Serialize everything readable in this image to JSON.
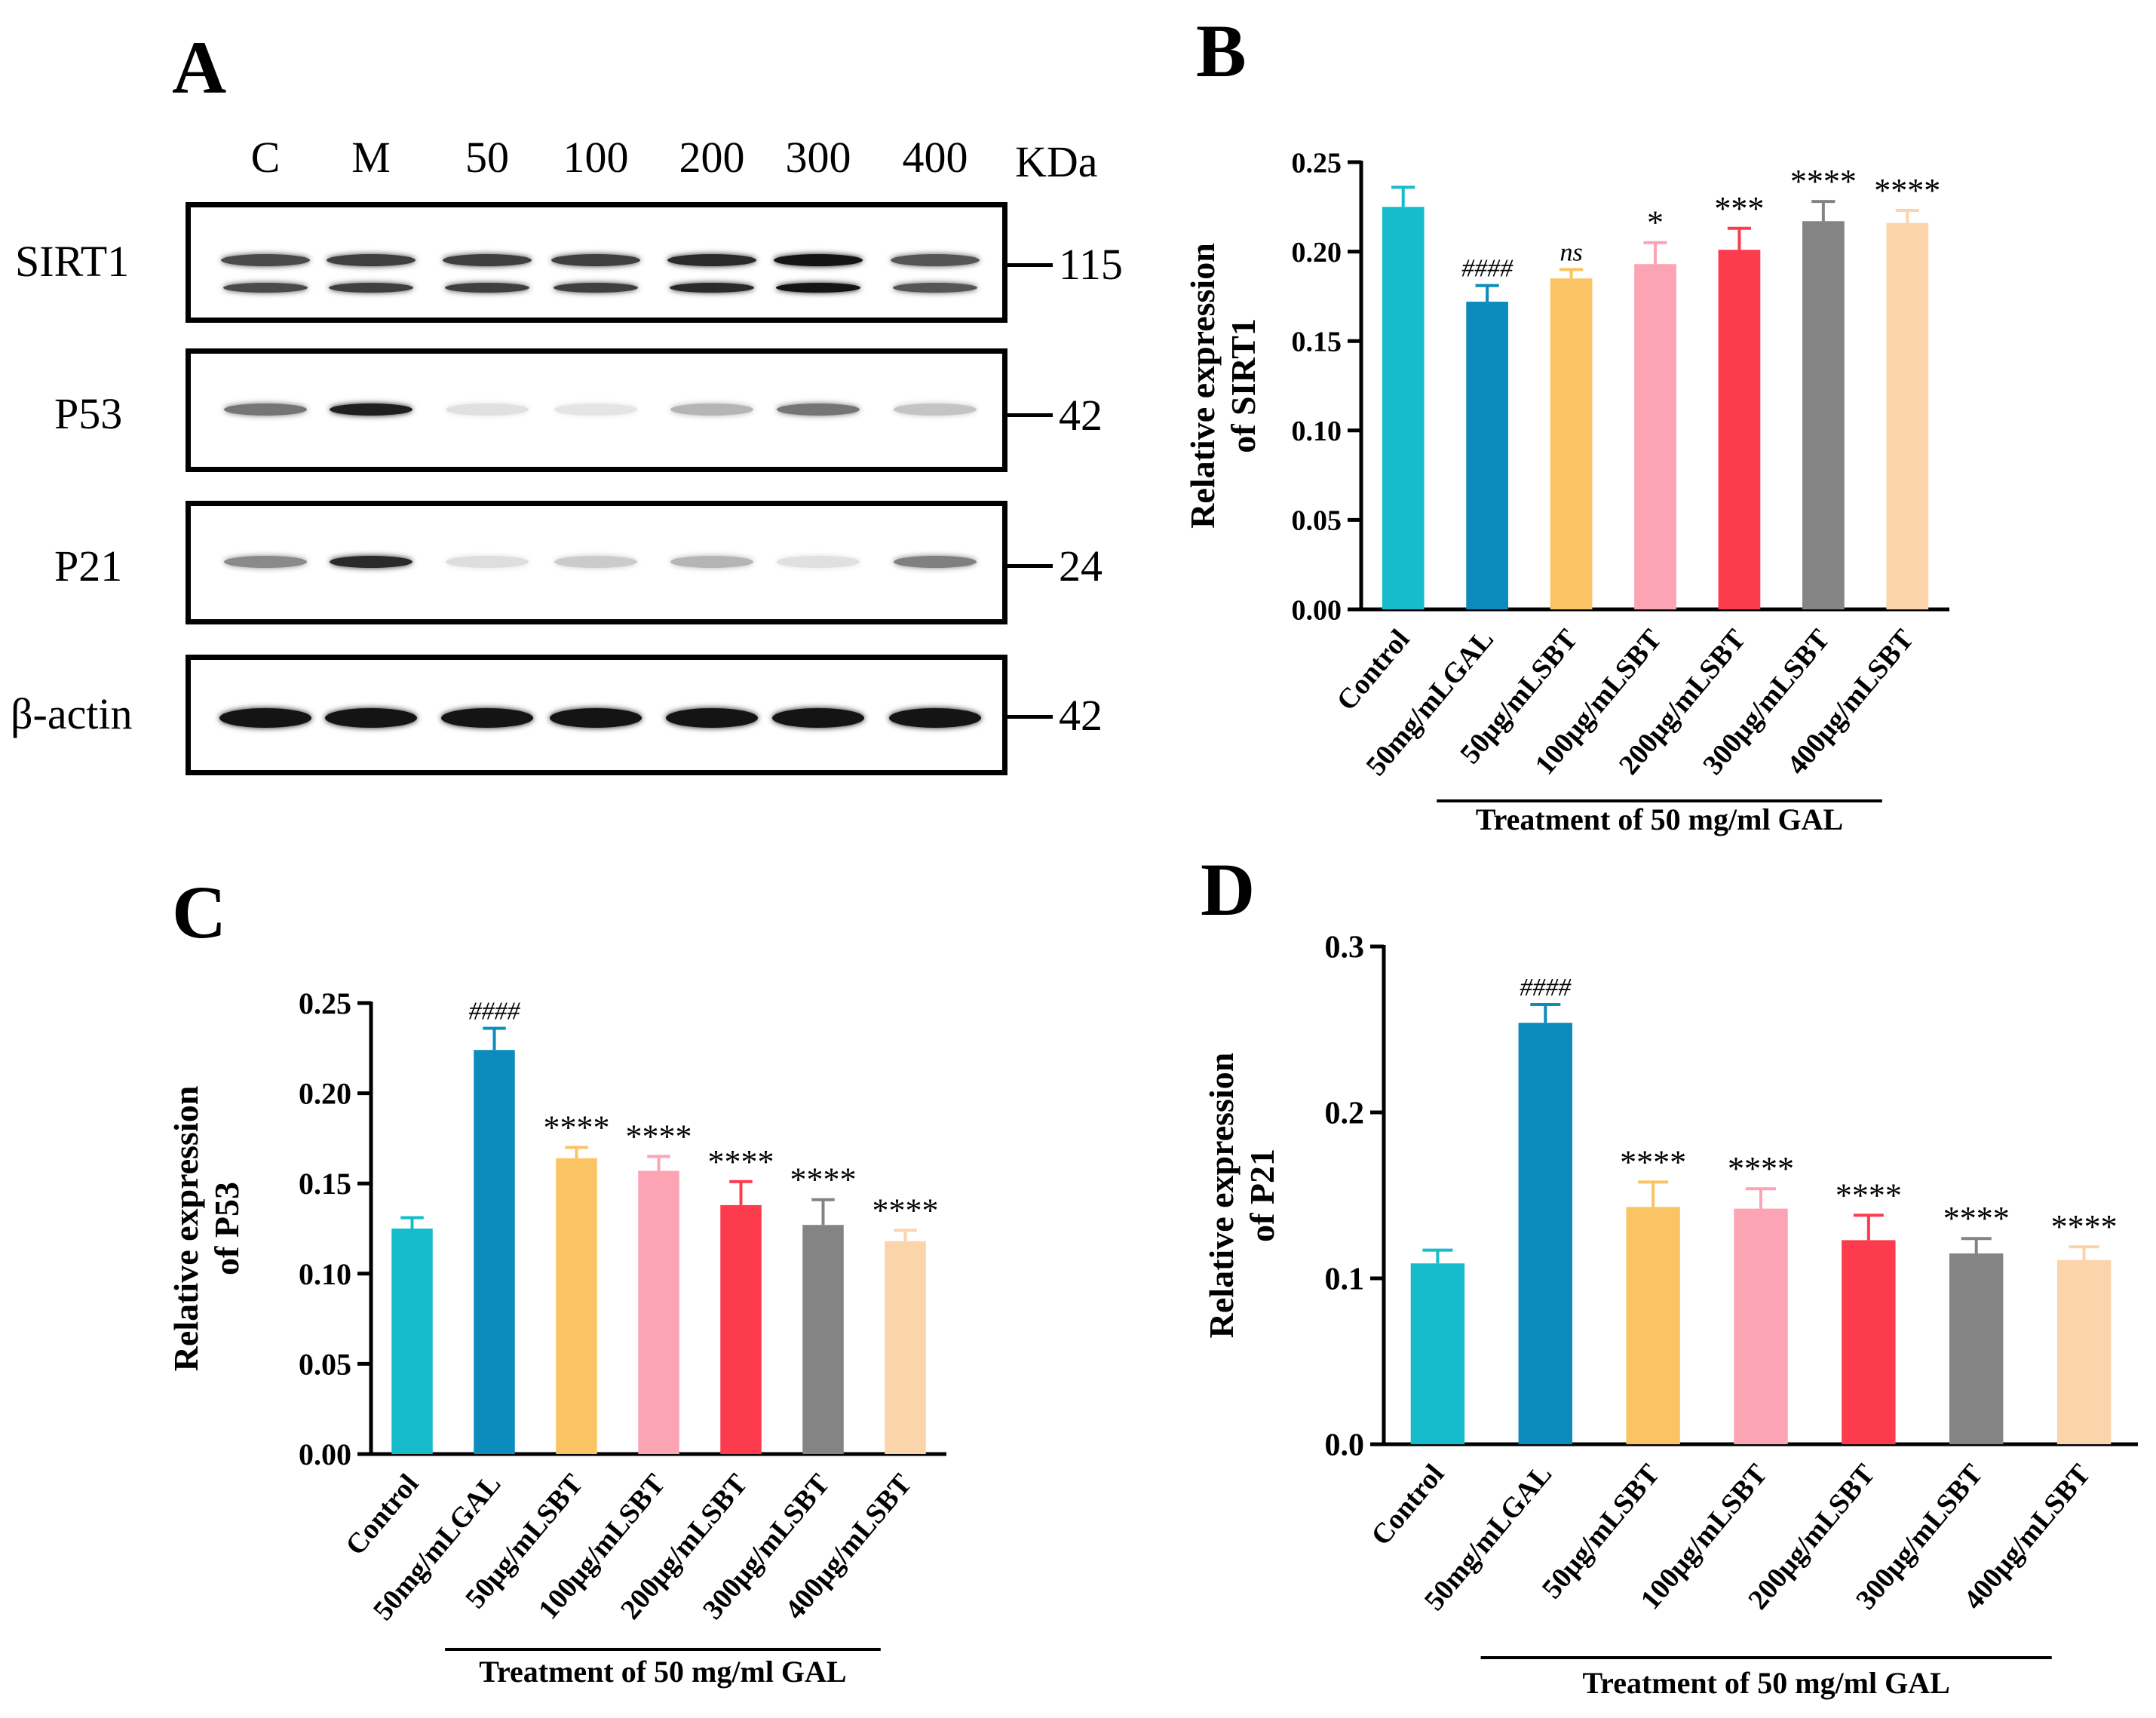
{
  "panels": {
    "a": "A",
    "b": "B",
    "c": "C",
    "d": "D"
  },
  "western_blot": {
    "lanes": [
      "C",
      "M",
      "50",
      "100",
      "200",
      "300",
      "400"
    ],
    "mw_unit": "KDa",
    "rows": [
      {
        "protein": "SIRT1",
        "mw": "115",
        "intensity": [
          0.75,
          0.8,
          0.8,
          0.8,
          0.9,
          1.0,
          0.7
        ]
      },
      {
        "protein": "P53",
        "mw": "42",
        "intensity": [
          0.55,
          0.95,
          0.05,
          0.03,
          0.25,
          0.55,
          0.18
        ]
      },
      {
        "protein": "P21",
        "mw": "24",
        "intensity": [
          0.45,
          0.9,
          0.06,
          0.15,
          0.25,
          0.05,
          0.5
        ]
      },
      {
        "protein": "β-actin",
        "mw": "42",
        "intensity": [
          1.0,
          1.0,
          1.0,
          1.0,
          1.0,
          1.0,
          1.0
        ]
      }
    ]
  },
  "colors": [
    "#16bccc",
    "#0c8cbc",
    "#fac464",
    "#fca4b4",
    "#fc3c4c",
    "#848484",
    "#fcd4ac"
  ],
  "chart_data": [
    {
      "id": "B",
      "type": "bar",
      "categories": [
        "Control",
        "50mg/mLGAL",
        "50μg/mLSBT",
        "100μg/mLSBT",
        "200μg/mLSBT",
        "300μg/mLSBT",
        "400μg/mLSBT"
      ],
      "values": [
        0.225,
        0.172,
        0.185,
        0.193,
        0.201,
        0.217,
        0.216
      ],
      "errors": [
        0.011,
        0.009,
        0.005,
        0.012,
        0.012,
        0.011,
        0.007
      ],
      "annotations": [
        "",
        "####",
        "ns",
        "*",
        "***",
        "****",
        "****"
      ],
      "ylabel": "Relative expression of SIRT1",
      "ylabel_lines": [
        "Relative expression",
        "of SIRT1"
      ],
      "xlabel": "Treatment of  50 mg/ml GAL",
      "ylim": [
        0,
        0.25
      ],
      "yticks": [
        0.0,
        0.05,
        0.1,
        0.15,
        0.2,
        0.25
      ],
      "ytick_labels": [
        "0.00",
        "0.05",
        "0.10",
        "0.15",
        "0.20",
        "0.25"
      ]
    },
    {
      "id": "C",
      "type": "bar",
      "categories": [
        "Control",
        "50mg/mLGAL",
        "50μg/mLSBT",
        "100μg/mLSBT",
        "200μg/mLSBT",
        "300μg/mLSBT",
        "400μg/mLSBT"
      ],
      "values": [
        0.125,
        0.224,
        0.164,
        0.157,
        0.138,
        0.127,
        0.118
      ],
      "errors": [
        0.006,
        0.012,
        0.006,
        0.008,
        0.013,
        0.014,
        0.006
      ],
      "annotations": [
        "",
        "####",
        "****",
        "****",
        "****",
        "****",
        "****"
      ],
      "ylabel": "Relative expression of P53",
      "ylabel_lines": [
        "Relative expression",
        "of P53"
      ],
      "xlabel": "Treatment of  50 mg/ml GAL",
      "ylim": [
        0,
        0.25
      ],
      "yticks": [
        0.0,
        0.05,
        0.1,
        0.15,
        0.2,
        0.25
      ],
      "ytick_labels": [
        "0.00",
        "0.05",
        "0.10",
        "0.15",
        "0.20",
        "0.25"
      ]
    },
    {
      "id": "D",
      "type": "bar",
      "categories": [
        "Control",
        "50mg/mLGAL",
        "50μg/mLSBT",
        "100μg/mLSBT",
        "200μg/mLSBT",
        "300μg/mLSBT",
        "400μg/mLSBT"
      ],
      "values": [
        0.109,
        0.254,
        0.143,
        0.142,
        0.123,
        0.115,
        0.111
      ],
      "errors": [
        0.008,
        0.011,
        0.015,
        0.012,
        0.015,
        0.009,
        0.008
      ],
      "annotations": [
        "",
        "####",
        "****",
        "****",
        "****",
        "****",
        "****"
      ],
      "ylabel": "Relative expression of P21",
      "ylabel_lines": [
        "Relative expression",
        "of P21"
      ],
      "xlabel": "Treatment of  50 mg/ml GAL",
      "ylim": [
        0,
        0.3
      ],
      "yticks": [
        0.0,
        0.1,
        0.2,
        0.3
      ],
      "ytick_labels": [
        "0.0",
        "0.1",
        "0.2",
        "0.3"
      ]
    }
  ]
}
